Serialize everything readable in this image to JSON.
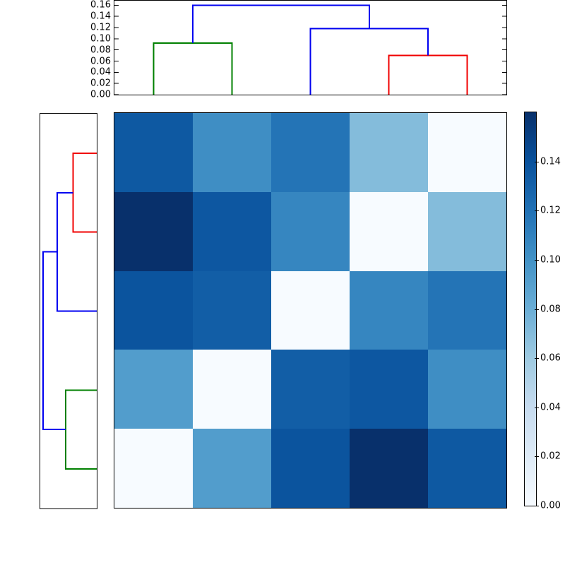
{
  "figure": {
    "background": "#ffffff",
    "kind": "hierarchical-clustering-heatmap"
  },
  "chart_data": {
    "type": "heatmap",
    "title": "",
    "grid": false,
    "heatmap": {
      "n_rows": 5,
      "n_cols": 5,
      "vmin": 0.0,
      "vmax": 0.16,
      "colormap": "Blues",
      "note": "symmetric distance matrix; rows are reverse order of columns, zero anti-diagonal",
      "values": [
        [
          0.135,
          0.102,
          0.118,
          0.07,
          0.0
        ],
        [
          0.16,
          0.136,
          0.107,
          0.0,
          0.07
        ],
        [
          0.138,
          0.132,
          0.0,
          0.107,
          0.118
        ],
        [
          0.092,
          0.0,
          0.132,
          0.136,
          0.102
        ],
        [
          0.0,
          0.092,
          0.138,
          0.16,
          0.135
        ]
      ],
      "cell_colors": [
        [
          "#0e59a2",
          "#3f8ec4",
          "#2474b6",
          "#84bcdb",
          "#f7fbff"
        ],
        [
          "#08306b",
          "#0d57a1",
          "#3686c0",
          "#f7fbff",
          "#84bcdb"
        ],
        [
          "#0b549e",
          "#125ea6",
          "#f7fbff",
          "#3686c0",
          "#2474b6"
        ],
        [
          "#529dcc",
          "#f7fbff",
          "#125ea6",
          "#0d57a1",
          "#3f8ec4"
        ],
        [
          "#f7fbff",
          "#529dcc",
          "#0b549e",
          "#08306b",
          "#0e59a2"
        ]
      ]
    },
    "top_dendrogram": {
      "orientation": "top",
      "ylim": [
        0.0,
        0.168
      ],
      "yticks": [
        "0.00",
        "0.02",
        "0.04",
        "0.06",
        "0.08",
        "0.10",
        "0.12",
        "0.14",
        "0.16"
      ],
      "leaf_positions": [
        0.1,
        0.3,
        0.5,
        0.7,
        0.9
      ],
      "merge_heights": {
        "red": 0.07,
        "green": 0.092,
        "blue_inner": 0.118,
        "root": 0.16
      },
      "links": [
        {
          "color": "green",
          "path": [
            [
              0.1,
              0.0
            ],
            [
              0.1,
              0.092
            ],
            [
              0.3,
              0.092
            ],
            [
              0.3,
              0.0
            ]
          ]
        },
        {
          "color": "red",
          "path": [
            [
              0.7,
              0.0
            ],
            [
              0.7,
              0.07
            ],
            [
              0.9,
              0.07
            ],
            [
              0.9,
              0.0
            ]
          ]
        },
        {
          "color": "blue",
          "path": [
            [
              0.5,
              0.0
            ],
            [
              0.5,
              0.118
            ],
            [
              0.8,
              0.118
            ],
            [
              0.8,
              0.07
            ]
          ]
        },
        {
          "color": "blue",
          "path": [
            [
              0.2,
              0.092
            ],
            [
              0.2,
              0.16
            ],
            [
              0.65,
              0.16
            ],
            [
              0.65,
              0.118
            ]
          ]
        }
      ]
    },
    "left_dendrogram": {
      "orientation": "left",
      "xlim": [
        0.0,
        0.168
      ],
      "leaf_positions": [
        0.1,
        0.3,
        0.5,
        0.7,
        0.9
      ],
      "links": [
        {
          "color": "red",
          "path": [
            [
              0.1,
              0.0
            ],
            [
              0.1,
              0.07
            ],
            [
              0.3,
              0.07
            ],
            [
              0.3,
              0.0
            ]
          ]
        },
        {
          "color": "blue",
          "path": [
            [
              0.5,
              0.0
            ],
            [
              0.5,
              0.118
            ],
            [
              0.2,
              0.118
            ],
            [
              0.2,
              0.07
            ]
          ]
        },
        {
          "color": "green",
          "path": [
            [
              0.7,
              0.0
            ],
            [
              0.7,
              0.092
            ],
            [
              0.9,
              0.092
            ],
            [
              0.9,
              0.0
            ]
          ]
        },
        {
          "color": "blue",
          "path": [
            [
              0.35,
              0.118
            ],
            [
              0.35,
              0.16
            ],
            [
              0.8,
              0.16
            ],
            [
              0.8,
              0.092
            ]
          ]
        }
      ]
    },
    "colorbar": {
      "vmin": 0.0,
      "vmax": 0.16,
      "ticks": [
        "0.00",
        "0.02",
        "0.04",
        "0.06",
        "0.08",
        "0.10",
        "0.12",
        "0.14"
      ],
      "gradient_bottom_to_top": [
        "#f7fbff",
        "#deebf7",
        "#c6dbef",
        "#9ecae1",
        "#6baed6",
        "#4292c6",
        "#2171b5",
        "#08519c",
        "#08306b"
      ]
    },
    "line_colors": {
      "blue": "#0000f0",
      "green": "#008000",
      "red": "#f00000"
    },
    "axis_color": "#000000",
    "tick_font_size_px": 13
  }
}
